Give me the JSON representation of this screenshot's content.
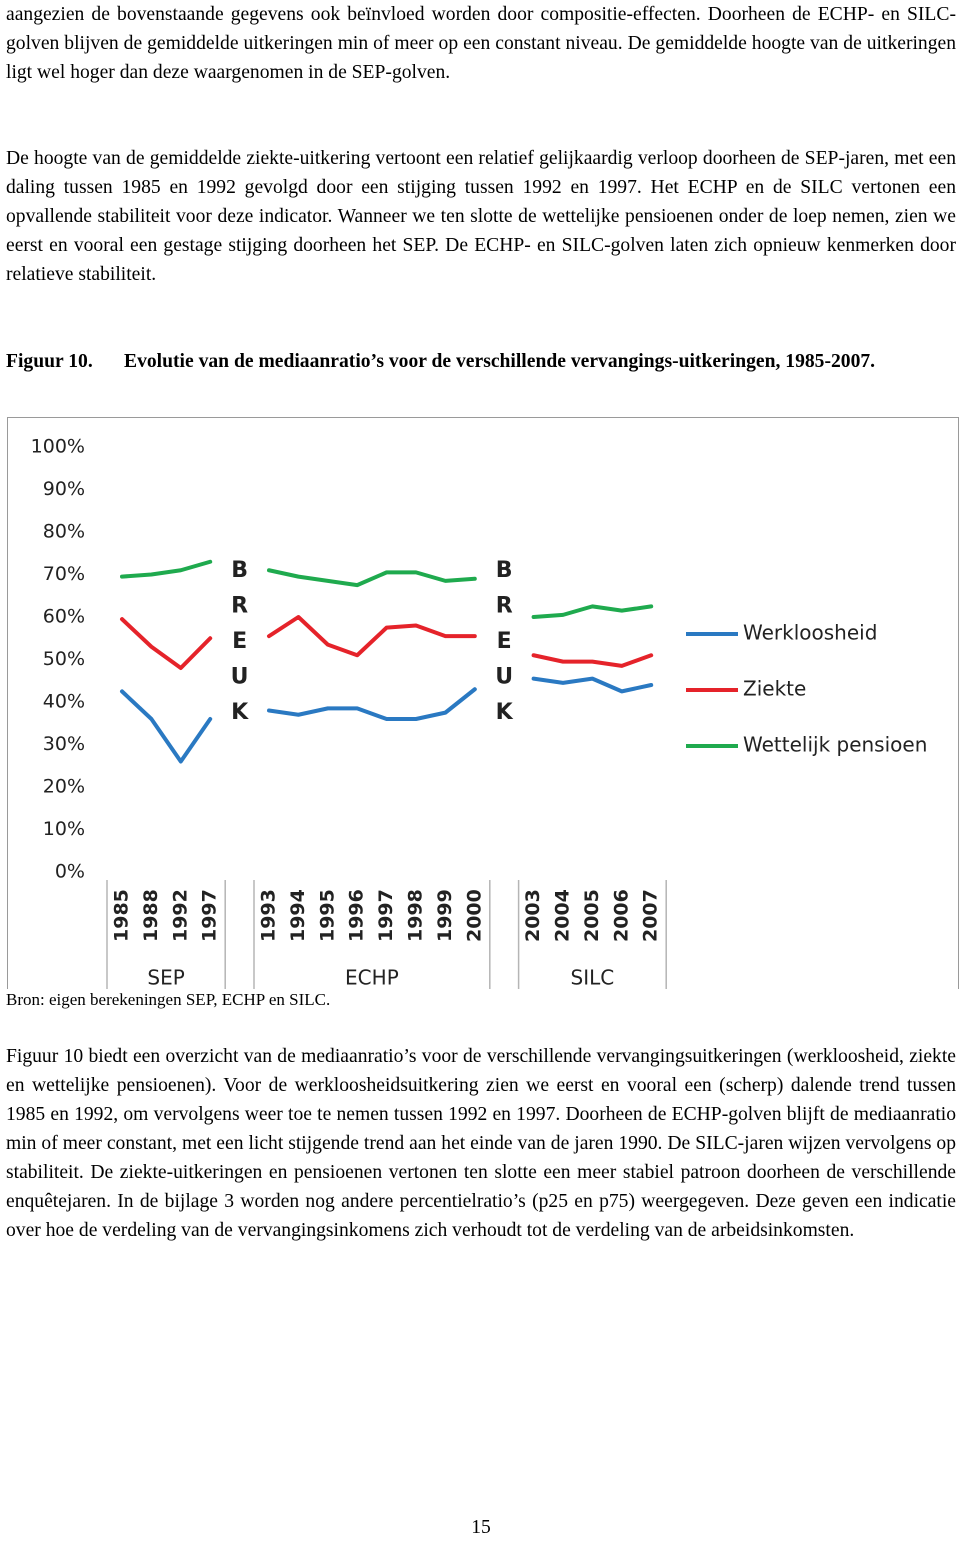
{
  "paragraphs_before": [
    "aangezien de bovenstaande gegevens ook beïnvloed worden door compositie-effecten. Doorheen de ECHP- en SILC-golven blijven de gemiddelde uitkeringen min of meer op een constant niveau. De gemiddelde hoogte van de uitkeringen ligt wel hoger dan deze waargenomen in de SEP-golven.",
    "De hoogte van de gemiddelde ziekte-uitkering vertoont een relatief gelijkaardig verloop doorheen de SEP-jaren, met een daling tussen 1985 en 1992 gevolgd door een stijging tussen 1992 en 1997. Het ECHP en de SILC vertonen een opvallende stabiliteit voor deze indicator. Wanneer we ten slotte de wettelijke pensioenen onder de loep nemen, zien we eerst en vooral een gestage stijging doorheen het SEP. De ECHP- en SILC-golven laten zich opnieuw kenmerken door relatieve stabiliteit."
  ],
  "figure": {
    "label": "Figuur 10.",
    "title": "Evolutie van de mediaanratio’s voor de verschillende vervangings-uitkeringen, 1985-2007.",
    "source": "Bron: eigen berekeningen SEP, ECHP en SILC."
  },
  "chart_data": {
    "type": "line",
    "categories": [
      "1985",
      "1988",
      "1992",
      "1997",
      null,
      "1993",
      "1994",
      "1995",
      "1996",
      "1997",
      "1998",
      "1999",
      "2000",
      null,
      "2003",
      "2004",
      "2005",
      "2006",
      "2007"
    ],
    "groups": [
      "SEP",
      "ECHP",
      "SILC"
    ],
    "break_label": [
      "B",
      "R",
      "E",
      "U",
      "K"
    ],
    "series": [
      {
        "name": "Werkloosheid",
        "color": "#2a79c2",
        "values": [
          42.5,
          36,
          26,
          36,
          null,
          38,
          37,
          38.5,
          38.5,
          36,
          36,
          37.5,
          43,
          null,
          45.5,
          44.5,
          45.5,
          42.5,
          44
        ]
      },
      {
        "name": "Ziekte",
        "color": "#e5232a",
        "values": [
          59.5,
          53,
          48,
          55,
          null,
          55.5,
          60,
          53.5,
          51,
          57.5,
          58,
          55.5,
          55.5,
          null,
          51,
          49.5,
          49.5,
          48.5,
          51
        ]
      },
      {
        "name": "Wettelijk pensioen",
        "color": "#1faa4e",
        "values": [
          69.5,
          70,
          71,
          73,
          null,
          71,
          69.5,
          68.5,
          67.5,
          70.5,
          70.5,
          68.5,
          69,
          null,
          60,
          60.5,
          62.5,
          61.5,
          62.5
        ]
      }
    ],
    "ylim": [
      0,
      100
    ],
    "yticks": [
      {
        "value": 0,
        "label": "0%"
      },
      {
        "value": 10,
        "label": "10%"
      },
      {
        "value": 20,
        "label": "20%"
      },
      {
        "value": 30,
        "label": "30%"
      },
      {
        "value": 40,
        "label": "40%"
      },
      {
        "value": 50,
        "label": "50%"
      },
      {
        "value": 60,
        "label": "60%"
      },
      {
        "value": 70,
        "label": "70%"
      },
      {
        "value": 80,
        "label": "80%"
      },
      {
        "value": 90,
        "label": "90%"
      },
      {
        "value": 100,
        "label": "100%"
      }
    ],
    "grid": false,
    "legend": "right"
  },
  "paragraphs_after": [
    "Figuur 10 biedt een overzicht van de mediaanratio’s voor de verschillende vervangingsuitkeringen (werkloosheid, ziekte en wettelijke pensioenen). Voor de werkloosheidsuitkering zien we eerst en vooral een (scherp) dalende trend tussen 1985 en 1992, om vervolgens weer toe te nemen tussen 1992 en 1997. Doorheen de ECHP-golven blijft de mediaanratio min of meer constant, met een licht stijgende trend aan het einde van de jaren 1990. De SILC-jaren wijzen vervolgens op stabiliteit. De ziekte-uitkeringen en pensioenen vertonen ten slotte een meer stabiel patroon doorheen de verschillende enquêtejaren. In de bijlage 3 worden nog andere percentielratio’s (p25 en p75) weergegeven. Deze geven een indicatie over hoe de verdeling van de vervangingsinkomens zich verhoudt tot de verdeling van de arbeidsinkomsten."
  ],
  "page_number": "15"
}
